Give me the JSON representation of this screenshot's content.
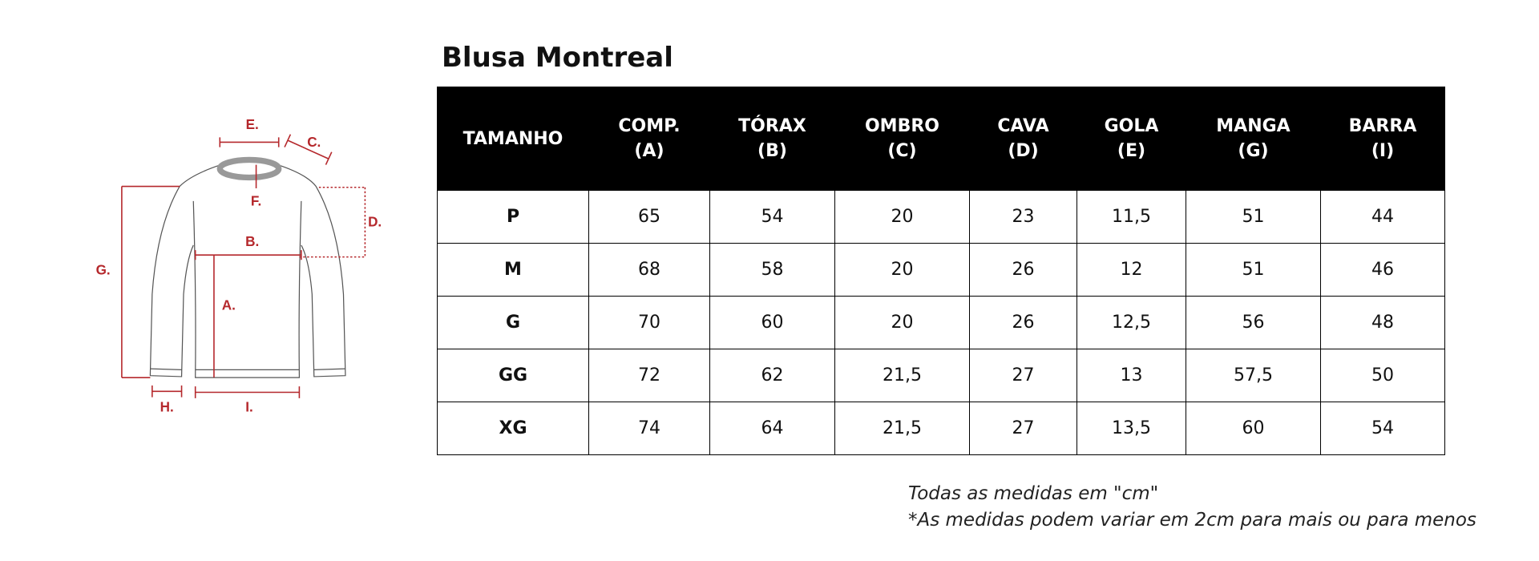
{
  "diagram": {
    "labels": [
      "E.",
      "C.",
      "F.",
      "D.",
      "B.",
      "G.",
      "A.",
      "H.",
      "I."
    ]
  },
  "title": "Blusa Montreal",
  "table": {
    "header": [
      [
        "TAMANHO"
      ],
      [
        "COMP.",
        "(A)"
      ],
      [
        "TÓRAX",
        "(B)"
      ],
      [
        "OMBRO",
        "(C)"
      ],
      [
        "CAVA",
        "(D)"
      ],
      [
        "GOLA",
        "(E)"
      ],
      [
        "MANGA",
        "(G)"
      ],
      [
        "BARRA",
        "(I)"
      ]
    ],
    "rows": [
      [
        "P",
        "65",
        "54",
        "20",
        "23",
        "11,5",
        "51",
        "44"
      ],
      [
        "M",
        "68",
        "58",
        "20",
        "26",
        "12",
        "51",
        "46"
      ],
      [
        "G",
        "70",
        "60",
        "20",
        "26",
        "12,5",
        "56",
        "48"
      ],
      [
        "GG",
        "72",
        "62",
        "21,5",
        "27",
        "13",
        "57,5",
        "50"
      ],
      [
        "XG",
        "74",
        "64",
        "21,5",
        "27",
        "13,5",
        "60",
        "54"
      ]
    ]
  },
  "notes": [
    "Todas as medidas em \"cm\"",
    "*As medidas podem variar em 2cm para mais ou para menos"
  ]
}
